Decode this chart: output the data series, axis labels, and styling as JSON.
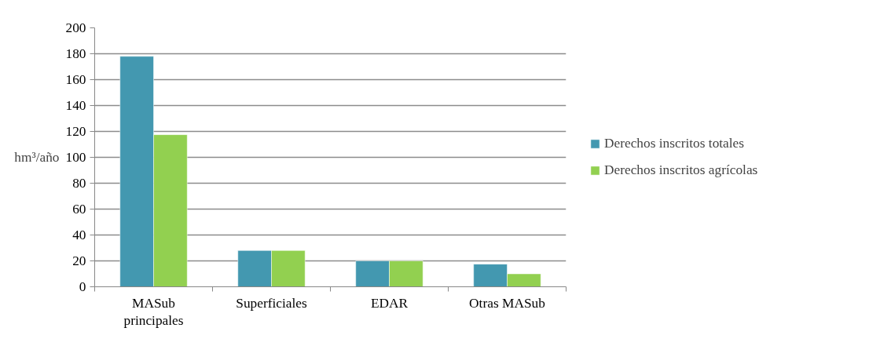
{
  "chart_data": {
    "type": "bar",
    "categories": [
      "MASub\nprincipales",
      "Superficiales",
      "EDAR",
      "Otras MASub"
    ],
    "ylabel": "hm³/año",
    "series": [
      {
        "name": "Derechos inscritos totales",
        "color": "#4398b0",
        "values": [
          178,
          28,
          20,
          17.5
        ]
      },
      {
        "name": "Derechos inscritos agrícolas",
        "color": "#92d050",
        "values": [
          117.5,
          28,
          20,
          10
        ]
      }
    ],
    "ylim": [
      0,
      200
    ],
    "yticks": [
      0,
      20,
      40,
      60,
      80,
      100,
      120,
      140,
      160,
      180,
      200
    ],
    "grid": "y",
    "legend": "right"
  }
}
